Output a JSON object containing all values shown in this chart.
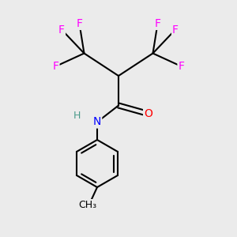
{
  "background_color": "#ebebeb",
  "atom_colors": {
    "C": "#000000",
    "H": "#4a9a8a",
    "N": "#0000ff",
    "O": "#ff0000",
    "F": "#ff00ff"
  },
  "bond_color": "#000000",
  "bond_width": 1.5,
  "figsize": [
    3.0,
    3.0
  ],
  "dpi": 100
}
